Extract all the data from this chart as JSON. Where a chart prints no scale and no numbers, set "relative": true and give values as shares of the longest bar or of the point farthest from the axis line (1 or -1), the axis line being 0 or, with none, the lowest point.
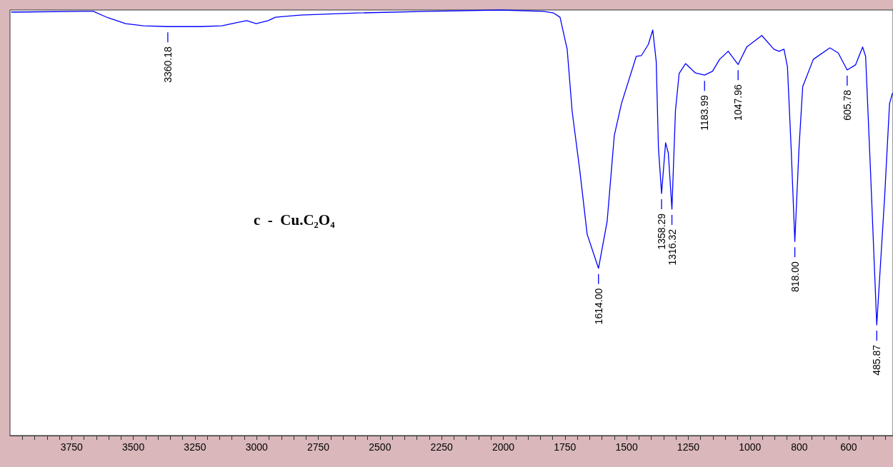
{
  "chart_data": {
    "type": "line",
    "relative": true,
    "color": "#0000ff",
    "x": [
      3995,
      3705,
      3662,
      3604,
      3531,
      3459,
      3360.18,
      3228,
      3141,
      3083,
      3040,
      3002,
      2953,
      2924,
      2823,
      2592,
      2302,
      2013,
      1840,
      1796,
      1770,
      1741,
      1721,
      1689,
      1660,
      1614,
      1579,
      1550,
      1521,
      1461,
      1440,
      1412,
      1394,
      1380,
      1371,
      1358.29,
      1342,
      1331,
      1316.32,
      1302,
      1287,
      1261,
      1221,
      1183.99,
      1152,
      1123,
      1088,
      1047.96,
      1013,
      952,
      903,
      882,
      862,
      848,
      833,
      818,
      801,
      786,
      743,
      676,
      642,
      605.78,
      572,
      543,
      531,
      511,
      485.87,
      454,
      434,
      422
    ],
    "values": [
      0.995,
      0.997,
      0.997,
      0.982,
      0.968,
      0.963,
      0.961,
      0.961,
      0.963,
      0.97,
      0.975,
      0.968,
      0.975,
      0.983,
      0.988,
      0.993,
      0.997,
      1.0,
      0.997,
      0.993,
      0.983,
      0.908,
      0.763,
      0.619,
      0.473,
      0.393,
      0.503,
      0.705,
      0.78,
      0.891,
      0.893,
      0.919,
      0.953,
      0.879,
      0.676,
      0.569,
      0.688,
      0.664,
      0.532,
      0.763,
      0.851,
      0.874,
      0.852,
      0.847,
      0.856,
      0.884,
      0.903,
      0.872,
      0.913,
      0.94,
      0.908,
      0.903,
      0.908,
      0.867,
      0.676,
      0.456,
      0.676,
      0.82,
      0.884,
      0.911,
      0.899,
      0.859,
      0.871,
      0.913,
      0.891,
      0.619,
      0.26,
      0.56,
      0.78,
      0.805
    ],
    "xlim": [
      4000,
      420
    ],
    "xticks": [
      {
        "value": 3950,
        "label": null
      },
      {
        "value": 3900,
        "label": null
      },
      {
        "value": 3850,
        "label": null
      },
      {
        "value": 3800,
        "label": null
      },
      3750,
      {
        "value": 3700,
        "label": null
      },
      {
        "value": 3650,
        "label": null
      },
      {
        "value": 3600,
        "label": null
      },
      {
        "value": 3550,
        "label": null
      },
      3500,
      {
        "value": 3450,
        "label": null
      },
      {
        "value": 3400,
        "label": null
      },
      {
        "value": 3350,
        "label": null
      },
      {
        "value": 3300,
        "label": null
      },
      3250,
      {
        "value": 3200,
        "label": null
      },
      {
        "value": 3150,
        "label": null
      },
      {
        "value": 3100,
        "label": null
      },
      {
        "value": 3050,
        "label": null
      },
      3000,
      {
        "value": 2950,
        "label": null
      },
      {
        "value": 2900,
        "label": null
      },
      {
        "value": 2850,
        "label": null
      },
      {
        "value": 2800,
        "label": null
      },
      2750,
      {
        "value": 2700,
        "label": null
      },
      {
        "value": 2650,
        "label": null
      },
      {
        "value": 2600,
        "label": null
      },
      {
        "value": 2550,
        "label": null
      },
      2500,
      {
        "value": 2450,
        "label": null
      },
      {
        "value": 2400,
        "label": null
      },
      {
        "value": 2350,
        "label": null
      },
      {
        "value": 2300,
        "label": null
      },
      2250,
      {
        "value": 2200,
        "label": null
      },
      {
        "value": 2150,
        "label": null
      },
      {
        "value": 2100,
        "label": null
      },
      {
        "value": 2050,
        "label": null
      },
      2000,
      {
        "value": 1950,
        "label": null
      },
      {
        "value": 1900,
        "label": null
      },
      {
        "value": 1850,
        "label": null
      },
      {
        "value": 1800,
        "label": null
      },
      1750,
      {
        "value": 1700,
        "label": null
      },
      {
        "value": 1650,
        "label": null
      },
      {
        "value": 1600,
        "label": null
      },
      {
        "value": 1550,
        "label": null
      },
      1500,
      {
        "value": 1450,
        "label": null
      },
      {
        "value": 1400,
        "label": null
      },
      {
        "value": 1350,
        "label": null
      },
      {
        "value": 1300,
        "label": null
      },
      1250,
      {
        "value": 1200,
        "label": null
      },
      {
        "value": 1150,
        "label": null
      },
      {
        "value": 1100,
        "label": null
      },
      {
        "value": 1050,
        "label": null
      },
      1000,
      {
        "value": 950,
        "label": null
      },
      {
        "value": 900,
        "label": null
      },
      {
        "value": 850,
        "label": null
      },
      800,
      {
        "value": 750,
        "label": null
      },
      {
        "value": 700,
        "label": null
      },
      {
        "value": 650,
        "label": null
      },
      600,
      {
        "value": 550,
        "label": null
      },
      {
        "value": 500,
        "label": null
      },
      {
        "value": 450,
        "label": null
      }
    ],
    "grid": false,
    "marker": "none",
    "line_style": "solid",
    "annotations": [
      "c  -  Cu.C₂O₄",
      {
        "text": "3360.18",
        "x": 3360.18,
        "y": 0.961
      },
      {
        "text": "1614.00",
        "x": 1614,
        "y": 0.393
      },
      {
        "text": "1358.29",
        "x": 1358.29,
        "y": 0.569
      },
      {
        "text": "1316.32",
        "x": 1316.32,
        "y": 0.532
      },
      {
        "text": "1183.99",
        "x": 1183.99,
        "y": 0.847
      },
      {
        "text": "1047.96",
        "x": 1047.96,
        "y": 0.872
      },
      {
        "text": "818.00",
        "x": 818,
        "y": 0.456
      },
      {
        "text": "605.78",
        "x": 605.78,
        "y": 0.859
      },
      {
        "text": "485.87",
        "x": 485.87,
        "y": 0.26
      }
    ]
  }
}
